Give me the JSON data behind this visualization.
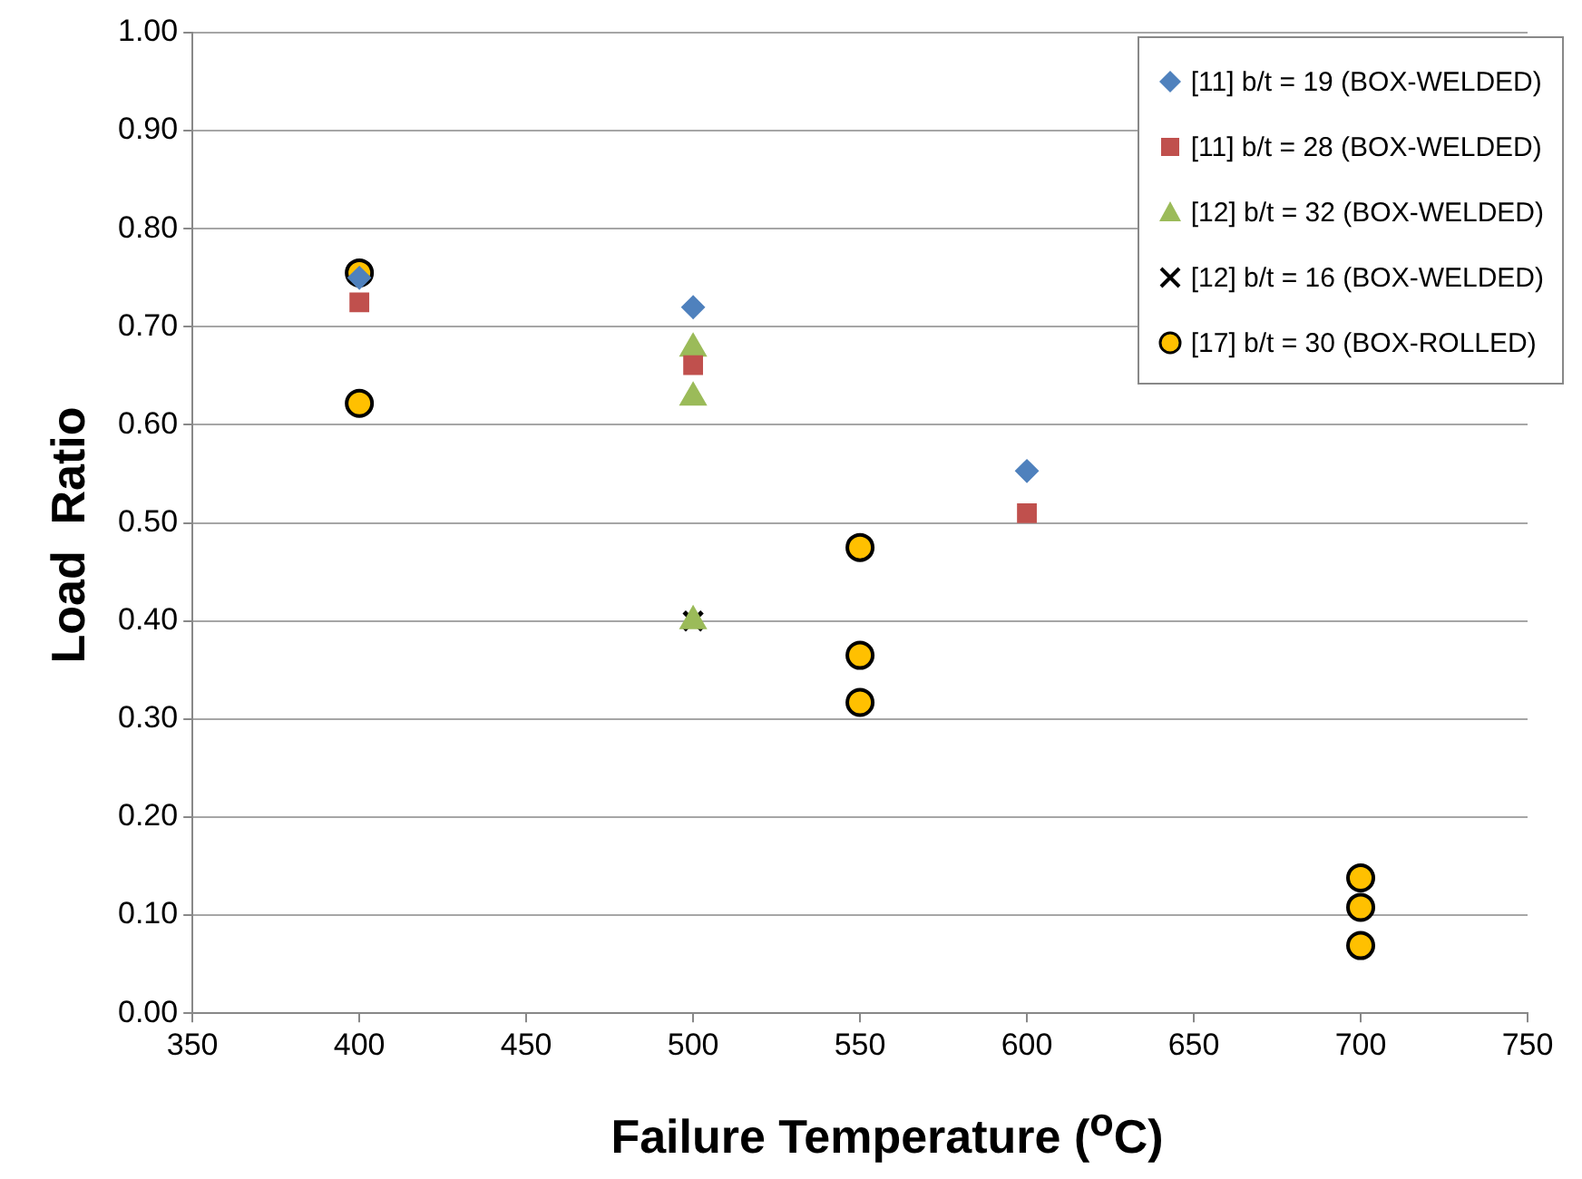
{
  "chart_data": {
    "type": "scatter",
    "xlabel": "Failure Temperature ($^{o}$C)",
    "ylabel": "Load  Ratio",
    "xlim": [
      350,
      750
    ],
    "xticks": [
      350,
      400,
      450,
      500,
      550,
      600,
      650,
      700,
      750
    ],
    "ylim": [
      0,
      1
    ],
    "yticks": [
      {
        "value": 0,
        "label": "0.00"
      },
      {
        "value": 0.1,
        "label": "0.10"
      },
      {
        "value": 0.2,
        "label": "0.20"
      },
      {
        "value": 0.3,
        "label": "0.30"
      },
      {
        "value": 0.4,
        "label": "0.40"
      },
      {
        "value": 0.5,
        "label": "0.50"
      },
      {
        "value": 0.6,
        "label": "0.60"
      },
      {
        "value": 0.7,
        "label": "0.70"
      },
      {
        "value": 0.8,
        "label": "0.80"
      },
      {
        "value": 0.9,
        "label": "0.90"
      },
      {
        "value": 1,
        "label": "1.00"
      }
    ],
    "grid": "y",
    "legend": "top right",
    "series": [
      {
        "name": "[11] b/t = 19 (BOX-WELDED)",
        "color": "#4f81bd",
        "marker": "diamond",
        "x": [
          400,
          500,
          600
        ],
        "values": [
          0.75,
          0.72,
          0.553
        ]
      },
      {
        "name": "[11] b/t = 28 (BOX-WELDED)",
        "color": "#c0504d",
        "marker": "square",
        "x": [
          400,
          500,
          600
        ],
        "values": [
          0.725,
          0.661,
          0.51
        ]
      },
      {
        "name": "[12] b/t = 32 (BOX-WELDED)",
        "color": "#9bbb59",
        "marker": "triangle",
        "x": [
          500,
          500,
          500
        ],
        "values": [
          0.678,
          0.628,
          0.4
        ]
      },
      {
        "name": "[12] b/t = 16 (BOX-WELDED)",
        "color": "#000000",
        "marker": "cross",
        "x": [
          500
        ],
        "values": [
          0.4
        ]
      },
      {
        "name": "[17] b/t = 30 (BOX-ROLLED)",
        "color": "#ffc000",
        "marker": "circle",
        "x": [
          400,
          400,
          550,
          550,
          550,
          700,
          700,
          700
        ],
        "values": [
          0.755,
          0.622,
          0.475,
          0.365,
          0.317,
          0.138,
          0.108,
          0.069
        ]
      }
    ]
  }
}
